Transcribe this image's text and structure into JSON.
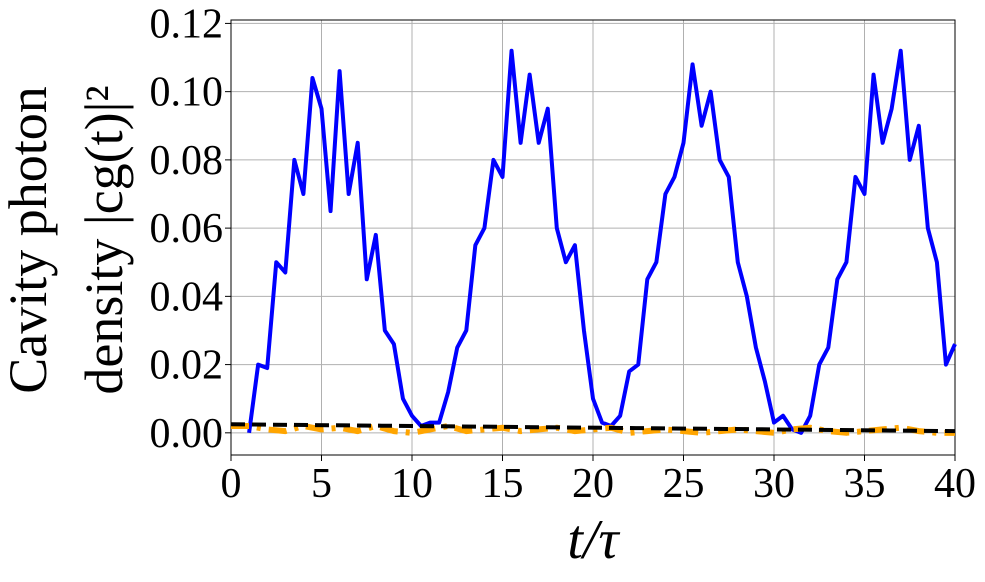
{
  "chart_data": {
    "type": "line",
    "xlabel": "t/τ",
    "ylabel": [
      "Cavity photon",
      "density |cg(t)|²"
    ],
    "xlim": [
      0,
      40
    ],
    "xticks": [
      0,
      5,
      10,
      15,
      20,
      25,
      30,
      35,
      40
    ],
    "ylim": [
      -0.0065,
      0.121
    ],
    "yticks": [
      {
        "value": 0,
        "label": "0.00"
      },
      {
        "value": 0.02,
        "label": "0.02"
      },
      {
        "value": 0.04,
        "label": "0.04"
      },
      {
        "value": 0.06,
        "label": "0.06"
      },
      {
        "value": 0.08,
        "label": "0.08"
      },
      {
        "value": 0.1,
        "label": "0.10"
      },
      {
        "value": 0.12,
        "label": "0.12"
      }
    ],
    "grid": true,
    "series": [
      {
        "color": "#0000ff",
        "dash": "solid",
        "x": [
          1,
          1.5,
          2,
          2.5,
          3,
          3.5,
          4,
          4.5,
          5,
          5.5,
          6,
          6.5,
          7,
          7.5,
          8,
          8.5,
          9,
          9.5,
          10,
          10.5,
          11,
          11.5,
          12,
          12.5,
          13,
          13.5,
          14,
          14.5,
          15,
          15.5,
          16,
          16.5,
          17,
          17.5,
          18,
          18.5,
          19,
          19.5,
          20,
          20.5,
          21,
          21.5,
          22,
          22.5,
          23,
          23.5,
          24,
          24.5,
          25,
          25.5,
          26,
          26.5,
          27,
          27.5,
          28,
          28.5,
          29,
          29.5,
          30,
          30.5,
          31,
          31.5,
          32,
          32.5,
          33,
          33.5,
          34,
          34.5,
          35,
          35.5,
          36,
          36.5,
          37,
          37.5,
          38,
          38.5,
          39,
          39.5,
          40
        ],
        "values": [
          0,
          0.02,
          0.019,
          0.05,
          0.047,
          0.08,
          0.07,
          0.104,
          0.095,
          0.065,
          0.106,
          0.07,
          0.085,
          0.045,
          0.058,
          0.03,
          0.026,
          0.01,
          0.005,
          0.002,
          0.003,
          0.003,
          0.012,
          0.025,
          0.03,
          0.055,
          0.06,
          0.08,
          0.075,
          0.112,
          0.085,
          0.105,
          0.085,
          0.095,
          0.06,
          0.05,
          0.055,
          0.03,
          0.01,
          0.003,
          0.002,
          0.005,
          0.018,
          0.02,
          0.045,
          0.05,
          0.07,
          0.075,
          0.085,
          0.108,
          0.09,
          0.1,
          0.08,
          0.075,
          0.05,
          0.04,
          0.025,
          0.015,
          0.003,
          0.005,
          0.001,
          0,
          0.005,
          0.02,
          0.025,
          0.045,
          0.05,
          0.075,
          0.07,
          0.105,
          0.085,
          0.095,
          0.112,
          0.08,
          0.09,
          0.06,
          0.05,
          0.02,
          0.026
        ]
      },
      {
        "color": "#ffa500",
        "dash": "dashdot",
        "x": [
          0,
          1,
          2,
          3,
          4,
          5,
          6,
          7,
          8,
          9,
          10,
          11,
          12,
          13,
          14,
          15,
          16,
          17,
          18,
          19,
          20,
          21,
          22,
          23,
          24,
          25,
          26,
          27,
          28,
          29,
          30,
          31,
          32,
          33,
          34,
          35,
          36,
          37,
          38,
          39,
          40
        ],
        "values": [
          0.002,
          0.002,
          0.001,
          0.0005,
          0.002,
          0.001,
          0.0015,
          0.0005,
          0.002,
          0.0005,
          0,
          0.001,
          0.002,
          0.0005,
          0.001,
          0.0015,
          0.0005,
          0.001,
          0.0015,
          0.0005,
          0.001,
          0.0015,
          0,
          0.0005,
          0.001,
          0.0005,
          0,
          0.0005,
          0.001,
          0.0005,
          0,
          0.001,
          0.0015,
          0.0005,
          0,
          0.0005,
          0.001,
          0.0015,
          0.0005,
          0,
          0
        ]
      },
      {
        "color": "#000000",
        "dash": "dashed",
        "x": [
          0,
          40
        ],
        "values": [
          0.0025,
          0.0005
        ]
      }
    ]
  }
}
